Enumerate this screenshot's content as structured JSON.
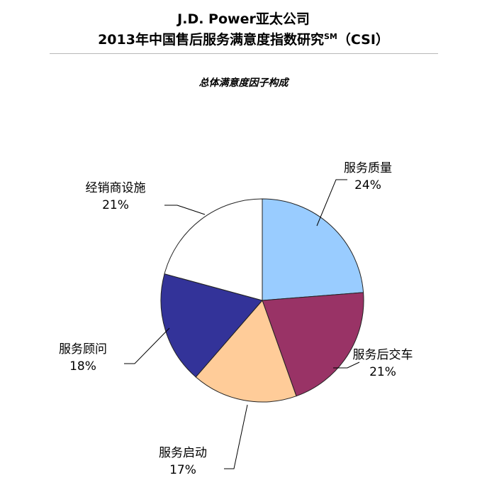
{
  "header": {
    "line1": "J.D. Power亚太公司",
    "line2_main": "2013年中国售后服务满意度指数研究",
    "line2_sup": "SM",
    "line2_tail": "（CSI）"
  },
  "chart_data": {
    "type": "pie",
    "title": "总体满意度因子构成",
    "slices": [
      {
        "label": "服务质量",
        "value_text": "24%",
        "value": 24,
        "color": "#99ccff"
      },
      {
        "label": "服务后交车",
        "value_text": "21%",
        "value": 21,
        "color": "#993366"
      },
      {
        "label": "服务启动",
        "value_text": "17%",
        "value": 17,
        "color": "#ffcc99"
      },
      {
        "label": "服务顾问",
        "value_text": "18%",
        "value": 18,
        "color": "#333399"
      },
      {
        "label": "经销商设施",
        "value_text": "21%",
        "value": 21,
        "color": "#ffffff"
      }
    ],
    "start": "12 o'clock",
    "direction": "clockwise",
    "legend": "none"
  }
}
